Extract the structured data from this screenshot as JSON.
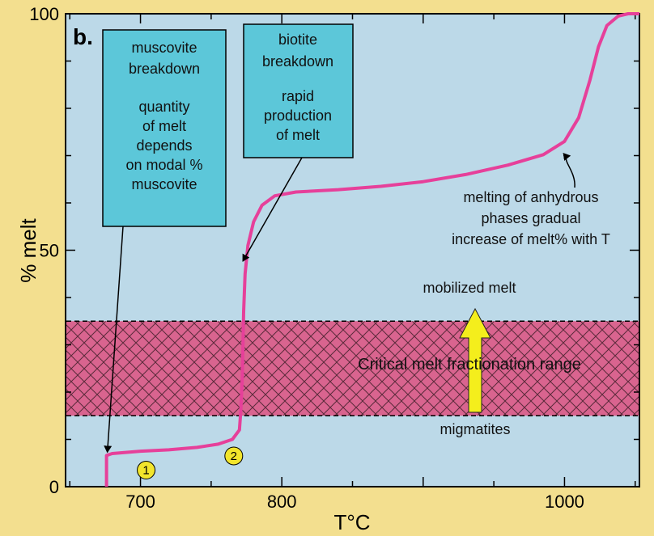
{
  "chart_data": {
    "type": "line",
    "panel_label": "b.",
    "xlabel": "T°C",
    "ylabel": "% melt",
    "xlim": [
      647,
      1053
    ],
    "ylim": [
      0,
      100
    ],
    "x_ticks": [
      700,
      800,
      900,
      1000
    ],
    "x_tick_labels": [
      "700",
      "800",
      "",
      "1000"
    ],
    "y_ticks": [
      0,
      50,
      100
    ],
    "y_tick_labels": [
      "0",
      "50",
      "100"
    ],
    "grid": false,
    "series": [
      {
        "color": "#e6409a",
        "points": [
          [
            676,
            0
          ],
          [
            676,
            6.6
          ],
          [
            680,
            7
          ],
          [
            700,
            7.5
          ],
          [
            720,
            7.8
          ],
          [
            740,
            8.3
          ],
          [
            755,
            9
          ],
          [
            765,
            10
          ],
          [
            770,
            12
          ],
          [
            771,
            16
          ],
          [
            772,
            23
          ],
          [
            772.5,
            30
          ],
          [
            773,
            37
          ],
          [
            774,
            45
          ],
          [
            776,
            51
          ],
          [
            780,
            56
          ],
          [
            786,
            59.5
          ],
          [
            795,
            61.5
          ],
          [
            810,
            62.3
          ],
          [
            840,
            62.8
          ],
          [
            870,
            63.5
          ],
          [
            900,
            64.5
          ],
          [
            930,
            66
          ],
          [
            960,
            68
          ],
          [
            985,
            70.2
          ],
          [
            1000,
            73
          ],
          [
            1010,
            78
          ],
          [
            1018,
            86
          ],
          [
            1024,
            93
          ],
          [
            1030,
            97.5
          ],
          [
            1038,
            99.5
          ],
          [
            1045,
            100
          ],
          [
            1053,
            100
          ]
        ]
      }
    ],
    "shaded_range": {
      "y": [
        15,
        35
      ],
      "color": "#d9648f",
      "label": "Critical melt fractionation range"
    },
    "boxes": [
      {
        "lines": [
          "muscovite",
          "breakdown"
        ],
        "sublines": [
          "quantity",
          "of melt",
          "depends",
          "on modal %",
          "muscovite"
        ],
        "arrow_to": [
          676,
          6.6
        ]
      },
      {
        "lines": [
          "biotite",
          "breakdown"
        ],
        "sublines": [
          "rapid",
          "production",
          "of melt"
        ],
        "arrow_to": [
          773,
          47
        ]
      }
    ],
    "annotations": [
      {
        "lines": [
          "melting of anhydrous",
          "phases  gradual",
          "increase of melt% with T"
        ],
        "arrow_to": [
          1001,
          71
        ]
      },
      {
        "text": "mobilized melt"
      },
      {
        "text": "migmatites"
      }
    ],
    "markers": [
      {
        "label": "1",
        "x": 704,
        "y": 3.5,
        "color": "#f2e52c"
      },
      {
        "label": "2",
        "x": 766,
        "y": 6.5,
        "color": "#f2e52c"
      }
    ],
    "colors": {
      "plot_background": "#bcd9e8",
      "outer_background": "#f3df8f",
      "box_fill": "#5cc7d9",
      "arrow_fill": "#f4ee1c"
    }
  }
}
